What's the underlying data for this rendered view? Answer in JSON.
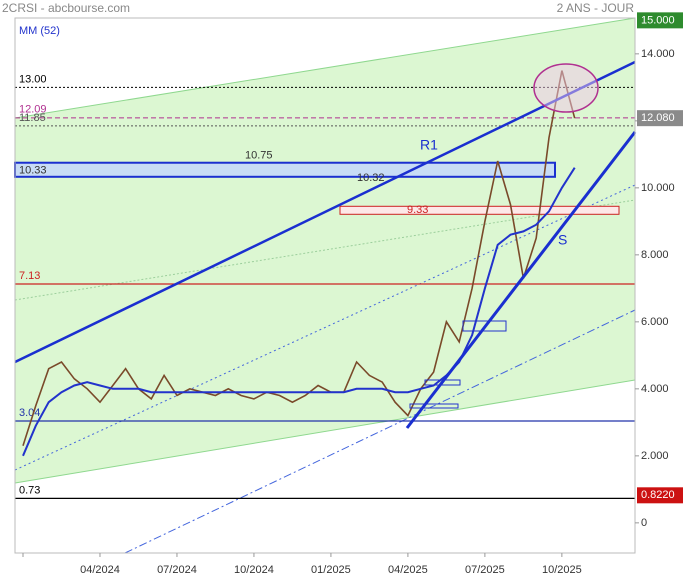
{
  "chart_data": {
    "type": "line",
    "title": "2CRSI - abcbourse.com",
    "subtitle": "2 ANS - JOUR",
    "categories": [
      "",
      null,
      null,
      null,
      null,
      null,
      "04/2024",
      null,
      null,
      null,
      null,
      null,
      "07/2024",
      null,
      null,
      null,
      null,
      null,
      "10/2024",
      null,
      null,
      null,
      null,
      null,
      "01/2025",
      null,
      null,
      null,
      null,
      null,
      "04/2025",
      null,
      null,
      null,
      null,
      null,
      "07/2025",
      null,
      null,
      null,
      null,
      null,
      "10/2025",
      null
    ],
    "series": [
      {
        "color": "#7a4a2a",
        "values": [
          2.3,
          3.5,
          4.6,
          4.8,
          4.3,
          4.0,
          3.6,
          4.1,
          4.6,
          4.0,
          3.7,
          4.4,
          3.8,
          4.0,
          3.9,
          3.8,
          4.0,
          3.8,
          3.7,
          3.9,
          3.8,
          3.6,
          3.8,
          4.1,
          3.9,
          3.9,
          4.8,
          4.4,
          4.2,
          3.6,
          3.2,
          4.0,
          4.5,
          6.0,
          5.4,
          7.0,
          9.0,
          10.8,
          9.5,
          7.3,
          8.5,
          11.5,
          13.5,
          12.08
        ]
      },
      {
        "name": "MM (52)",
        "color": "#2233cc",
        "values": [
          2.0,
          2.9,
          3.6,
          3.9,
          4.1,
          4.2,
          4.1,
          4.0,
          4.0,
          4.0,
          3.9,
          3.9,
          3.9,
          3.9,
          3.9,
          3.9,
          3.9,
          3.9,
          3.9,
          3.9,
          3.9,
          3.9,
          3.9,
          3.9,
          3.9,
          3.9,
          4.0,
          4.0,
          4.0,
          3.9,
          3.9,
          4.0,
          4.1,
          4.4,
          4.8,
          5.6,
          7.0,
          8.3,
          8.6,
          8.7,
          8.9,
          9.3,
          10.0,
          10.6
        ]
      }
    ],
    "ylim": [
      -0.9,
      15.07
    ],
    "yticks": [
      0,
      {
        "value": 2,
        "label": "2.000"
      },
      {
        "value": 4,
        "label": "4.000"
      },
      {
        "value": 6,
        "label": "6.000"
      },
      {
        "value": 8,
        "label": "8.000"
      },
      {
        "value": 10,
        "label": "10.000"
      },
      {
        "value": 12,
        "label": "12.000"
      },
      {
        "value": 14,
        "label": "14.000"
      }
    ],
    "levels": [
      {
        "value": 13.0,
        "label": "13.00",
        "color": "#000000",
        "style": "dotted"
      },
      {
        "value": 12.09,
        "label": "12.09",
        "color": "#b03090",
        "style": "dashed"
      },
      {
        "value": 11.85,
        "label": "11.85",
        "color": "#555555",
        "style": "dotted"
      },
      {
        "value": 7.13,
        "label": "7.13",
        "color": "#cc2222",
        "style": "solid"
      },
      {
        "value": 3.04,
        "label": "3.04",
        "color": "#2233aa",
        "style": "solid"
      },
      {
        "value": 0.73,
        "label": "0.73",
        "color": "#000000",
        "style": "solid"
      }
    ],
    "band": {
      "top": {
        "value": 10.75,
        "label": "10.75"
      },
      "bottom": {
        "value": 10.33,
        "label": "10.33"
      },
      "inner": {
        "value": 10.32,
        "label": "10.32"
      }
    },
    "zone": {
      "value": 9.33,
      "label": "9.33"
    },
    "price_tags": [
      {
        "value": 15,
        "label": "15.000",
        "color": "#2e8b2e"
      },
      {
        "value": 12.08,
        "label": "12.080",
        "color": "#8a8a8a"
      },
      {
        "value": 0.822,
        "label": "0.8220",
        "color": "#cc1111"
      }
    ],
    "annotations": [
      "R1",
      "S"
    ]
  }
}
